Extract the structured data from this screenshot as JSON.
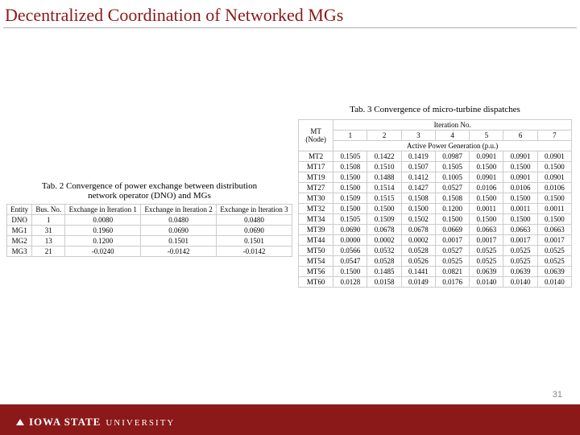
{
  "slide_title": "Decentralized Coordination of Networked MGs",
  "page_number": "31",
  "brand": {
    "line1": "IOWA STATE",
    "line2": "UNIVERSITY"
  },
  "colors": {
    "title": "#8b1919",
    "footer_bg": "#8b1919",
    "grid": "#cccccc",
    "page_num": "#888888",
    "background": "#ffffff"
  },
  "table2": {
    "caption": "Tab. 2 Convergence of power exchange between distribution\nnetwork operator (DNO) and MGs",
    "type": "table",
    "font_size": 9,
    "columns": [
      "Entity",
      "Bus. No.",
      "Exchange in Iteration 1",
      "Exchange in Iteration 2",
      "Exchange in Iteration 3"
    ],
    "rows": [
      [
        "DNO",
        "1",
        "0.0080",
        "0.0480",
        "0.0480"
      ],
      [
        "MG1",
        "31",
        "0.1960",
        "0.0690",
        "0.0690"
      ],
      [
        "MG2",
        "13",
        "0.1200",
        "0.1501",
        "0.1501"
      ],
      [
        "MG3",
        "21",
        "-0.0240",
        "-0.0142",
        "-0.0142"
      ]
    ]
  },
  "table3": {
    "caption": "Tab. 3 Convergence of micro-turbine dispatches",
    "type": "table",
    "font_size": 9,
    "header_top": "Iteration No.",
    "header_left": "MT\n(Node)",
    "header_sub": "Active Power Generation (p.u.)",
    "cols": [
      "1",
      "2",
      "3",
      "4",
      "5",
      "6",
      "7"
    ],
    "rows": [
      [
        "MT2",
        "0.1505",
        "0.1422",
        "0.1419",
        "0.0987",
        "0.0901",
        "0.0901",
        "0.0901"
      ],
      [
        "MT17",
        "0.1508",
        "0.1510",
        "0.1507",
        "0.1505",
        "0.1500",
        "0.1500",
        "0.1500"
      ],
      [
        "MT19",
        "0.1500",
        "0.1488",
        "0.1412",
        "0.1005",
        "0.0901",
        "0.0901",
        "0.0901"
      ],
      [
        "MT27",
        "0.1500",
        "0.1514",
        "0.1427",
        "0.0527",
        "0.0106",
        "0.0106",
        "0.0106"
      ],
      [
        "MT30",
        "0.1509",
        "0.1515",
        "0.1508",
        "0.1508",
        "0.1500",
        "0.1500",
        "0.1500"
      ],
      [
        "MT32",
        "0.1500",
        "0.1500",
        "0.1500",
        "0.1200",
        "0.0011",
        "0.0011",
        "0.0011"
      ],
      [
        "MT34",
        "0.1505",
        "0.1509",
        "0.1502",
        "0.1500",
        "0.1500",
        "0.1500",
        "0.1500"
      ],
      [
        "MT39",
        "0.0690",
        "0.0678",
        "0.0678",
        "0.0669",
        "0.0663",
        "0.0663",
        "0.0663"
      ],
      [
        "MT44",
        "0.0000",
        "0.0002",
        "0.0002",
        "0.0017",
        "0.0017",
        "0.0017",
        "0.0017"
      ],
      [
        "MT50",
        "0.0566",
        "0.0532",
        "0.0528",
        "0.0527",
        "0.0525",
        "0.0525",
        "0.0525"
      ],
      [
        "MT54",
        "0.0547",
        "0.0528",
        "0.0526",
        "0.0525",
        "0.0525",
        "0.0525",
        "0.0525"
      ],
      [
        "MT56",
        "0.1500",
        "0.1485",
        "0.1441",
        "0.0821",
        "0.0639",
        "0.0639",
        "0.0639"
      ],
      [
        "MT60",
        "0.0128",
        "0.0158",
        "0.0149",
        "0.0176",
        "0.0140",
        "0.0140",
        "0.0140"
      ]
    ]
  }
}
